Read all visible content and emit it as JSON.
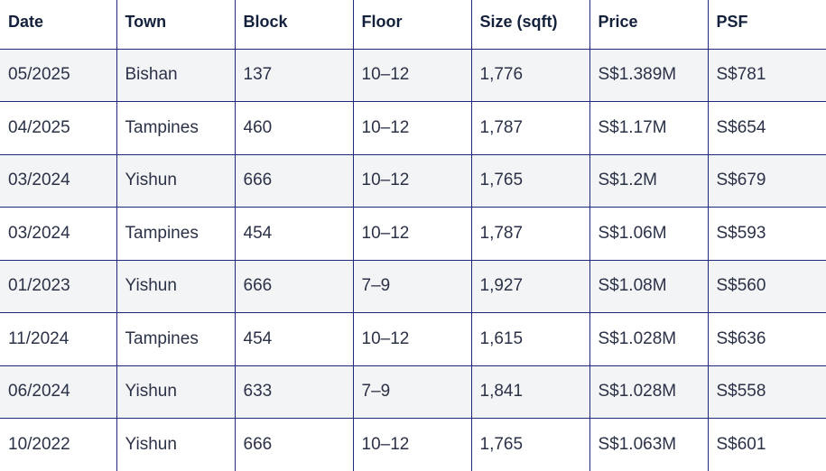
{
  "table": {
    "headers": [
      "Date",
      "Town",
      "Block",
      "Floor",
      "Size (sqft)",
      "Price",
      "PSF"
    ],
    "rows": [
      [
        "05/2025",
        "Bishan",
        "137",
        "10–12",
        "1,776",
        "S$1.389M",
        "S$781"
      ],
      [
        "04/2025",
        "Tampines",
        "460",
        "10–12",
        "1,787",
        "S$1.17M",
        "S$654"
      ],
      [
        "03/2024",
        "Yishun",
        "666",
        "10–12",
        "1,765",
        "S$1.2M",
        "S$679"
      ],
      [
        "03/2024",
        "Tampines",
        "454",
        "10–12",
        "1,787",
        "S$1.06M",
        "S$593"
      ],
      [
        "01/2023",
        "Yishun",
        "666",
        "7–9",
        "1,927",
        "S$1.08M",
        "S$560"
      ],
      [
        "11/2024",
        "Tampines",
        "454",
        "10–12",
        "1,615",
        "S$1.028M",
        "S$636"
      ],
      [
        "06/2024",
        "Yishun",
        "633",
        "7–9",
        "1,841",
        "S$1.028M",
        "S$558"
      ],
      [
        "10/2022",
        "Yishun",
        "666",
        "10–12",
        "1,765",
        "S$1.063M",
        "S$601"
      ]
    ]
  },
  "colors": {
    "border": "#1e2a78",
    "header_text": "#14213d",
    "cell_text": "#2b3248",
    "stripe": "#f3f4f6",
    "background": "#ffffff"
  }
}
